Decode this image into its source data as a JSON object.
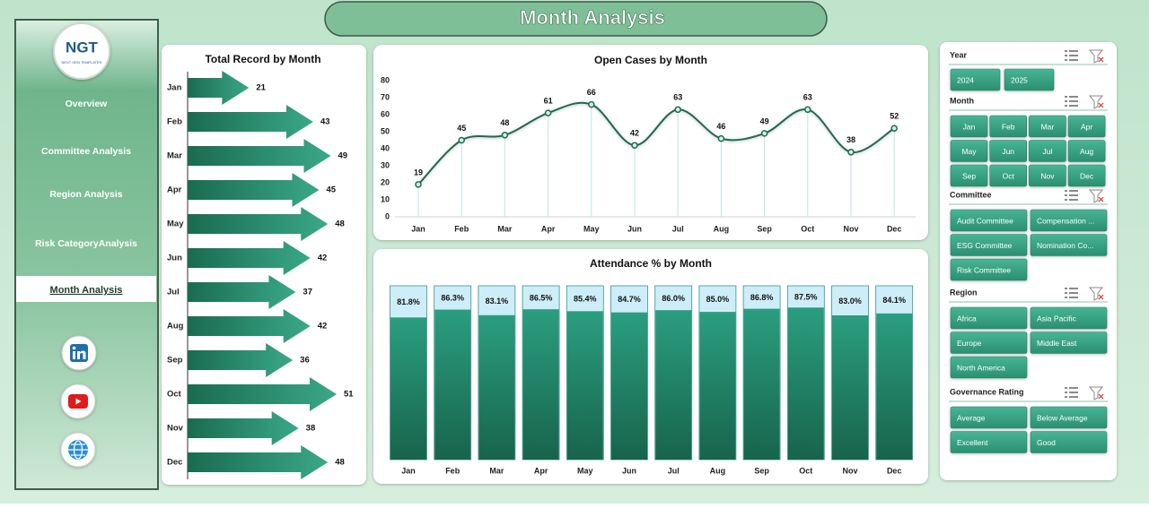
{
  "header": {
    "title": "Month Analysis"
  },
  "sidebar": {
    "logo": "NGT",
    "logo_tagline": "NEXT GEN TEMPLATES",
    "nav": [
      "Overview",
      "Committee Analysis",
      "Region Analysis",
      "Risk CategoryAnalysis",
      "Month Analysis"
    ]
  },
  "chart_data": [
    {
      "type": "bar",
      "orientation": "horizontal",
      "title": "Total Record by Month",
      "categories": [
        "Jan",
        "Feb",
        "Mar",
        "Apr",
        "May",
        "Jun",
        "Jul",
        "Aug",
        "Sep",
        "Oct",
        "Nov",
        "Dec"
      ],
      "values": [
        21,
        43,
        49,
        45,
        48,
        42,
        37,
        42,
        36,
        51,
        38,
        48
      ],
      "color": "#1f7a5c"
    },
    {
      "type": "line",
      "title": "Open Cases by Month",
      "categories": [
        "Jan",
        "Feb",
        "Mar",
        "Apr",
        "May",
        "Jun",
        "Jul",
        "Aug",
        "Sep",
        "Oct",
        "Nov",
        "Dec"
      ],
      "values": [
        19,
        45,
        48,
        61,
        66,
        42,
        63,
        46,
        49,
        63,
        38,
        52
      ],
      "color": "#1f6b50",
      "ylim": [
        0,
        80
      ],
      "yticks": [
        0,
        10,
        20,
        30,
        40,
        50,
        60,
        70,
        80
      ]
    },
    {
      "type": "bar",
      "orientation": "vertical",
      "title": "Attendance % by Month",
      "categories": [
        "Jan",
        "Feb",
        "Mar",
        "Apr",
        "May",
        "Jun",
        "Jul",
        "Aug",
        "Sep",
        "Oct",
        "Nov",
        "Dec"
      ],
      "values": [
        81.8,
        86.3,
        83.1,
        86.5,
        85.4,
        84.7,
        86.0,
        85.0,
        86.8,
        87.5,
        83.0,
        84.1
      ],
      "value_labels": [
        "81.8%",
        "86.3%",
        "83.1%",
        "86.5%",
        "85.4%",
        "84.7%",
        "86.0%",
        "85.0%",
        "86.8%",
        "87.5%",
        "83.0%",
        "84.1%"
      ],
      "color": "#1f7a5c",
      "ylim": [
        0,
        100
      ]
    }
  ],
  "slicers": [
    {
      "title": "Year",
      "items": [
        "2024",
        "2025"
      ]
    },
    {
      "title": "Month",
      "items": [
        "Jan",
        "Feb",
        "Mar",
        "Apr",
        "May",
        "Jun",
        "Jul",
        "Aug",
        "Sep",
        "Oct",
        "Nov",
        "Dec"
      ]
    },
    {
      "title": "Committee",
      "items": [
        "Audit Committee",
        "Compensation ...",
        "ESG Committee",
        "Nomination Co...",
        "Risk Committee"
      ]
    },
    {
      "title": "Region",
      "items": [
        "Africa",
        "Asia Pacific",
        "Europe",
        "Middle East",
        "North America"
      ]
    },
    {
      "title": "Governance Rating",
      "items": [
        "Average",
        "Below Average",
        "Excellent",
        "Good"
      ]
    }
  ]
}
